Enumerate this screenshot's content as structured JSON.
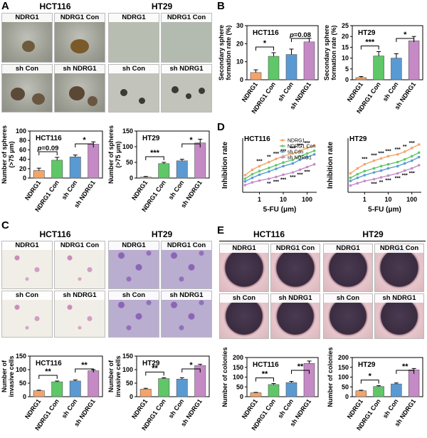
{
  "panels": {
    "A": "A",
    "B": "B",
    "C": "C",
    "D": "D",
    "E": "E"
  },
  "cell_lines": {
    "hct116": "HCT116",
    "ht29": "HT29"
  },
  "groups": [
    "NDRG1",
    "NDRG1 Con",
    "sh Con",
    "sh NDRG1"
  ],
  "colors": {
    "ndrg1": "#f4a46a",
    "ndrg1_con": "#5fc767",
    "sh_con": "#5a9ad3",
    "sh_ndrg1": "#c58ac6"
  },
  "icons": {
    "photo": "micrograph-icon"
  },
  "panel_A": {
    "images": {
      "top_left": [
        "NDRG1",
        "NDRG1 Con"
      ],
      "top_right": [
        "NDRG1",
        "NDRG1 Con"
      ],
      "bottom_left": [
        "sh Con",
        "sh NDRG1"
      ],
      "bottom_right": [
        "sh Con",
        "sh NDRG1"
      ]
    }
  },
  "panel_C": {
    "images": {
      "top_left": [
        "NDRG1",
        "NDRG1 Con"
      ],
      "top_right": [
        "NDRG1",
        "NDRG1 Con"
      ],
      "bottom_left": [
        "sh Con",
        "sh NDRG1"
      ],
      "bottom_right": [
        "sh Con",
        "sh NDRG1"
      ]
    }
  },
  "panel_E": {
    "images": {
      "top_left": [
        "NDRG1",
        "NDRG1 Con"
      ],
      "top_right": [
        "NDRG1",
        "NDRG1 Con"
      ],
      "bottom_left": [
        "sh Con",
        "sh NDRG1"
      ],
      "bottom_right": [
        "sh Con",
        "sh NDRG1"
      ]
    }
  },
  "chart_data": [
    {
      "id": "A1",
      "type": "bar",
      "title": "HCT116",
      "ylabel": "Number of spheres (>75 μm)",
      "categories": [
        "NDRG1",
        "NDRG1 Con",
        "sh Con",
        "sh NDRG1"
      ],
      "values": [
        16,
        38,
        45,
        72
      ],
      "errors": [
        5,
        6,
        4,
        5
      ],
      "ylim": [
        0,
        100
      ],
      "yticks": [
        0,
        20,
        40,
        60,
        80,
        100
      ],
      "annotations": [
        {
          "from": 0,
          "to": 1,
          "label": "p=0.09",
          "italic_p": true
        },
        {
          "from": 2,
          "to": 3,
          "label": "*"
        }
      ]
    },
    {
      "id": "A2",
      "type": "bar",
      "title": "HT29",
      "ylabel": "Number of spheres (>75 μm)",
      "categories": [
        "NDRG1",
        "NDRG1 Con",
        "sh Con",
        "sh NDRG1"
      ],
      "values": [
        3,
        46,
        55,
        112
      ],
      "errors": [
        2,
        4,
        5,
        12
      ],
      "ylim": [
        0,
        150
      ],
      "yticks": [
        0,
        50,
        100,
        150
      ],
      "annotations": [
        {
          "from": 0,
          "to": 1,
          "label": "***"
        },
        {
          "from": 2,
          "to": 3,
          "label": "*"
        }
      ]
    },
    {
      "id": "B1",
      "type": "bar",
      "title": "HCT116",
      "ylabel": "Secondary sphere formation rate (%)",
      "categories": [
        "NDRG1",
        "NDRG1 Con",
        "sh Con",
        "sh NDRG1"
      ],
      "values": [
        4,
        13,
        14,
        21
      ],
      "errors": [
        1.5,
        2,
        3,
        2
      ],
      "ylim": [
        0,
        30
      ],
      "yticks": [
        0,
        10,
        20,
        30
      ],
      "annotations": [
        {
          "from": 0,
          "to": 1,
          "label": "*"
        },
        {
          "from": 2,
          "to": 3,
          "label": "p=0.08",
          "italic_p": true
        }
      ]
    },
    {
      "id": "B2",
      "type": "bar",
      "title": "HT29",
      "ylabel": "Secondary sphere formation rate(%)",
      "categories": [
        "NDRG1",
        "NDRG1 Con",
        "sh Con",
        "sh NDRG1"
      ],
      "values": [
        1,
        11,
        10,
        18
      ],
      "errors": [
        0.5,
        2,
        2,
        2
      ],
      "ylim": [
        0,
        25
      ],
      "yticks": [
        0,
        5,
        10,
        15,
        20,
        25
      ],
      "annotations": [
        {
          "from": 0,
          "to": 1,
          "label": "***"
        },
        {
          "from": 2,
          "to": 3,
          "label": "*"
        }
      ]
    },
    {
      "id": "D1",
      "type": "line",
      "title": "HCT116",
      "ylabel": "Inhibition rate",
      "xlabel": "5-FU (μm)",
      "x": [
        0.25,
        0.5,
        1,
        2.5,
        5,
        10,
        25,
        50,
        100,
        200
      ],
      "xscale": "log",
      "xticks": [
        1,
        10,
        100
      ],
      "ylim": [
        -0.2,
        1.0
      ],
      "series": [
        {
          "name": "NDRG1",
          "values": [
            0.18,
            0.3,
            0.38,
            0.47,
            0.54,
            0.6,
            0.66,
            0.72,
            0.78,
            0.84
          ]
        },
        {
          "name": "NDRG1 Con",
          "values": [
            0.1,
            0.2,
            0.27,
            0.34,
            0.4,
            0.46,
            0.52,
            0.6,
            0.66,
            0.72
          ]
        },
        {
          "name": "sh Con",
          "values": [
            0.04,
            0.12,
            0.19,
            0.26,
            0.32,
            0.38,
            0.44,
            0.52,
            0.58,
            0.64
          ]
        },
        {
          "name": "sh NDRG1",
          "values": [
            -0.04,
            0.02,
            0.06,
            0.1,
            0.14,
            0.19,
            0.24,
            0.3,
            0.36,
            0.42
          ]
        }
      ],
      "annotations": [
        "***",
        "**",
        "***",
        "***",
        "***",
        "***",
        "***",
        "**",
        "***",
        "***",
        "***",
        "***",
        "***"
      ],
      "legend": "top-right"
    },
    {
      "id": "D2",
      "type": "line",
      "title": "HT29",
      "ylabel": "Inhibition rate",
      "xlabel": "5-FU (μm)",
      "x": [
        0.25,
        0.5,
        1,
        2.5,
        5,
        10,
        25,
        50,
        100,
        200
      ],
      "xscale": "log",
      "xticks": [
        1,
        10,
        100
      ],
      "ylim": [
        -0.2,
        1.0
      ],
      "series": [
        {
          "name": "NDRG1",
          "values": [
            0.22,
            0.33,
            0.42,
            0.5,
            0.55,
            0.6,
            0.64,
            0.7,
            0.78,
            0.86
          ]
        },
        {
          "name": "NDRG1 Con",
          "values": [
            0.12,
            0.2,
            0.27,
            0.33,
            0.38,
            0.42,
            0.47,
            0.53,
            0.6,
            0.68
          ]
        },
        {
          "name": "sh Con",
          "values": [
            0.05,
            0.12,
            0.18,
            0.24,
            0.28,
            0.33,
            0.38,
            0.44,
            0.5,
            0.58
          ]
        },
        {
          "name": "sh NDRG1",
          "values": [
            -0.05,
            0.0,
            0.05,
            0.09,
            0.13,
            0.17,
            0.22,
            0.28,
            0.33,
            0.4
          ]
        }
      ],
      "annotations": [
        "***",
        "***",
        "***",
        "***",
        "***",
        "**",
        "***",
        "***",
        "**",
        "***",
        "***",
        "***",
        "***"
      ]
    },
    {
      "id": "C1",
      "type": "bar",
      "title": "HCT116",
      "ylabel": "Number of invasive cells",
      "categories": [
        "NDRG1",
        "NDRG1 Con",
        "sh Con",
        "sh NDRG1"
      ],
      "values": [
        22,
        55,
        58,
        96
      ],
      "errors": [
        2,
        3,
        4,
        4
      ],
      "ylim": [
        0,
        150
      ],
      "yticks": [
        0,
        50,
        100,
        150
      ],
      "annotations": [
        {
          "from": 0,
          "to": 1,
          "label": "**"
        },
        {
          "from": 2,
          "to": 3,
          "label": "**"
        }
      ]
    },
    {
      "id": "C2",
      "type": "bar",
      "title": "HT29",
      "ylabel": "Number of invasive cells",
      "categories": [
        "NDRG1",
        "NDRG1 Con",
        "sh Con",
        "sh NDRG1"
      ],
      "values": [
        28,
        67,
        65,
        115
      ],
      "errors": [
        3,
        3,
        5,
        5
      ],
      "ylim": [
        0,
        150
      ],
      "yticks": [
        0,
        50,
        100,
        150
      ],
      "annotations": [
        {
          "from": 0,
          "to": 1,
          "label": "**"
        },
        {
          "from": 2,
          "to": 3,
          "label": "*"
        }
      ]
    },
    {
      "id": "E1",
      "type": "bar",
      "title": "HCT116",
      "ylabel": "Number of colonies",
      "categories": [
        "NDRG1",
        "NDRG1 Con",
        "sh Con",
        "sh NDRG1"
      ],
      "values": [
        20,
        62,
        72,
        170
      ],
      "errors": [
        2,
        5,
        6,
        12
      ],
      "ylim": [
        0,
        200
      ],
      "yticks": [
        0,
        50,
        100,
        150,
        200
      ],
      "annotations": [
        {
          "from": 0,
          "to": 1,
          "label": "**"
        },
        {
          "from": 2,
          "to": 3,
          "label": "**"
        }
      ]
    },
    {
      "id": "E2",
      "type": "bar",
      "title": "HT29",
      "ylabel": "Number of colonies",
      "categories": [
        "NDRG1",
        "NDRG1 Con",
        "sh Con",
        "sh NDRG1"
      ],
      "values": [
        30,
        52,
        65,
        137
      ],
      "errors": [
        3,
        4,
        5,
        7
      ],
      "ylim": [
        0,
        200
      ],
      "yticks": [
        0,
        50,
        100,
        150,
        200
      ],
      "annotations": [
        {
          "from": 0,
          "to": 1,
          "label": "*"
        },
        {
          "from": 2,
          "to": 3,
          "label": "**"
        }
      ]
    }
  ]
}
